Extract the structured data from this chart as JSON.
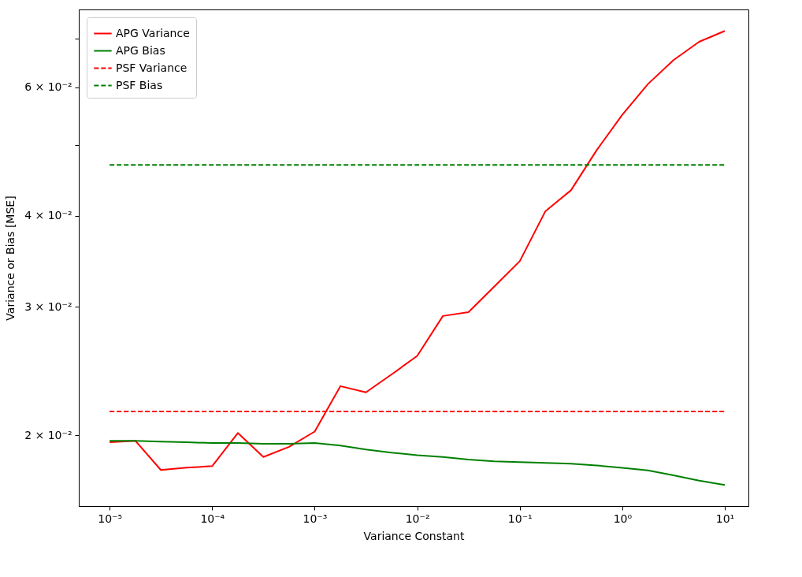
{
  "chart_data": {
    "type": "line",
    "xlabel": "Variance Constant",
    "ylabel": "Variance or Bias [MSE]",
    "log": "xy",
    "grid": false,
    "legend": "top left",
    "xlim": [
      5e-06,
      17
    ],
    "ylim": [
      0.016,
      0.0767
    ],
    "xticks": [
      {
        "value": 1e-05,
        "label": "10⁻⁵"
      },
      {
        "value": 0.0001,
        "label": "10⁻⁴"
      },
      {
        "value": 0.001,
        "label": "10⁻³"
      },
      {
        "value": 0.01,
        "label": "10⁻²"
      },
      {
        "value": 0.1,
        "label": "10⁻¹"
      },
      {
        "value": 1,
        "label": "10⁰"
      },
      {
        "value": 10,
        "label": "10¹"
      }
    ],
    "yticks": [
      {
        "value": 0.02,
        "label": "2 × 10⁻²"
      },
      {
        "value": 0.03,
        "label": "3 × 10⁻²"
      },
      {
        "value": 0.04,
        "label": "4 × 10⁻²"
      },
      {
        "value": 0.05,
        "label": null
      },
      {
        "value": 0.06,
        "label": "6 × 10⁻²"
      },
      {
        "value": 0.07,
        "label": null
      }
    ],
    "x": [
      1e-05,
      1.78e-05,
      3.16e-05,
      5.62e-05,
      0.0001,
      0.000178,
      0.000316,
      0.000562,
      0.001,
      0.00178,
      0.00316,
      0.00562,
      0.01,
      0.0178,
      0.0316,
      0.0562,
      0.1,
      0.178,
      0.316,
      0.562,
      1,
      1.78,
      3.16,
      5.62,
      10
    ],
    "series": [
      {
        "name": "APG Variance",
        "color": "#ff0000",
        "line_style": "solid",
        "values": [
          0.01957,
          0.01966,
          0.01793,
          0.01806,
          0.01815,
          0.02015,
          0.01868,
          0.01929,
          0.02024,
          0.02336,
          0.02291,
          0.02424,
          0.0257,
          0.02915,
          0.02951,
          0.03197,
          0.03465,
          0.04058,
          0.04335,
          0.04918,
          0.055,
          0.06061,
          0.06537,
          0.06927,
          0.07167
        ]
      },
      {
        "name": "APG Bias",
        "color": "#008000",
        "line_style": "solid",
        "values": [
          0.01966,
          0.01966,
          0.01961,
          0.01957,
          0.01952,
          0.01952,
          0.01947,
          0.01947,
          0.01952,
          0.01937,
          0.01913,
          0.01894,
          0.01879,
          0.01868,
          0.01853,
          0.01843,
          0.01838,
          0.01833,
          0.01829,
          0.01819,
          0.01805,
          0.01791,
          0.01763,
          0.01734,
          0.0171
        ]
      },
      {
        "name": "PSF Variance",
        "color": "#ff0000",
        "line_style": "dashed",
        "values": [
          0.02157,
          0.02157,
          0.02157,
          0.02157,
          0.02157,
          0.02157,
          0.02157,
          0.02157,
          0.02157,
          0.02157,
          0.02157,
          0.02157,
          0.02157,
          0.02157,
          0.02157,
          0.02157,
          0.02157,
          0.02157,
          0.02157,
          0.02157,
          0.02157,
          0.02157,
          0.02157,
          0.02157,
          0.02157
        ]
      },
      {
        "name": "PSF Bias",
        "color": "#008000",
        "line_style": "dashed",
        "values": [
          0.04696,
          0.04696,
          0.04696,
          0.04696,
          0.04696,
          0.04696,
          0.04696,
          0.04696,
          0.04696,
          0.04696,
          0.04696,
          0.04696,
          0.04696,
          0.04696,
          0.04696,
          0.04696,
          0.04696,
          0.04696,
          0.04696,
          0.04696,
          0.04696,
          0.04696,
          0.04696,
          0.04696,
          0.04696
        ]
      }
    ]
  }
}
